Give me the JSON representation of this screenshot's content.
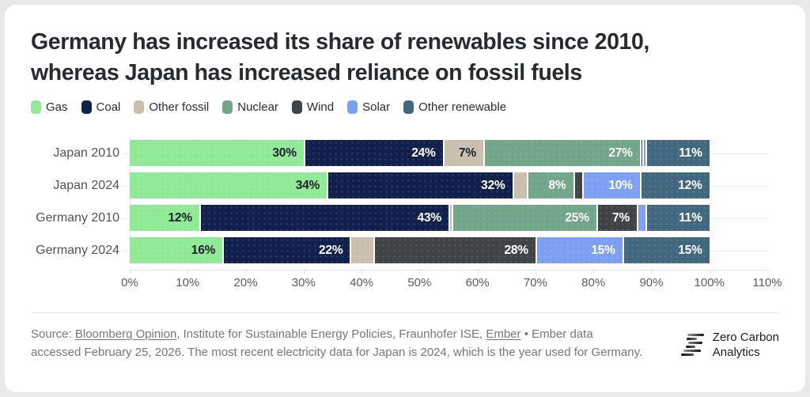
{
  "header": {
    "title_line1": "Germany has increased its share of renewables since 2010,",
    "title_line2": "whereas Japan has increased reliance on fossil fuels"
  },
  "chart_data": {
    "type": "bar",
    "variant": "stacked-horizontal-100pct",
    "unit": "%",
    "categories": [
      "Japan 2010",
      "Japan 2024",
      "Germany 2010",
      "Germany 2024"
    ],
    "series": [
      {
        "name": "Gas",
        "color": "#90E996",
        "label_color": "#1c2130",
        "values": [
          30,
          34,
          12,
          16
        ]
      },
      {
        "name": "Coal",
        "color": "#12204E",
        "label_color": "#ffffff",
        "values": [
          24,
          32,
          43,
          22
        ]
      },
      {
        "name": "Other fossil",
        "color": "#C8C0AD",
        "label_color": "#1c2130",
        "values": [
          7,
          2.5,
          0.5,
          4
        ]
      },
      {
        "name": "Nuclear",
        "color": "#72A68A",
        "label_color": "#ffffff",
        "values": [
          27,
          8,
          25,
          0
        ]
      },
      {
        "name": "Wind",
        "color": "#404447",
        "label_color": "#ffffff",
        "values": [
          0.5,
          1.5,
          7,
          28
        ]
      },
      {
        "name": "Solar",
        "color": "#7EA0F4",
        "label_color": "#ffffff",
        "values": [
          0.5,
          10,
          1.5,
          15
        ]
      },
      {
        "name": "Other renewable",
        "color": "#426880",
        "label_color": "#ffffff",
        "values": [
          11,
          12,
          11,
          15
        ]
      }
    ],
    "xlim": [
      0,
      110
    ],
    "xticks": [
      0,
      10,
      20,
      30,
      40,
      50,
      60,
      70,
      80,
      90,
      100,
      110
    ],
    "tick_suffix": "%",
    "value_label_threshold": 6,
    "legend_position": "top-left",
    "grid": "row-gridlines-to-110pct"
  },
  "footer": {
    "prefix": "Source: ",
    "link_bloomberg": "Bloomberg Opinion",
    "middle": ", Institute for Sustainable Energy Policies, Fraunhofer ISE, ",
    "link_ember": "Ember",
    "suffix": " • Ember data accessed February 25, 2026. The most recent electricity data for Japan is 2024, which is the year used for Germany."
  },
  "logo": {
    "name_line1": "Zero Carbon",
    "name_line2": "Analytics"
  }
}
